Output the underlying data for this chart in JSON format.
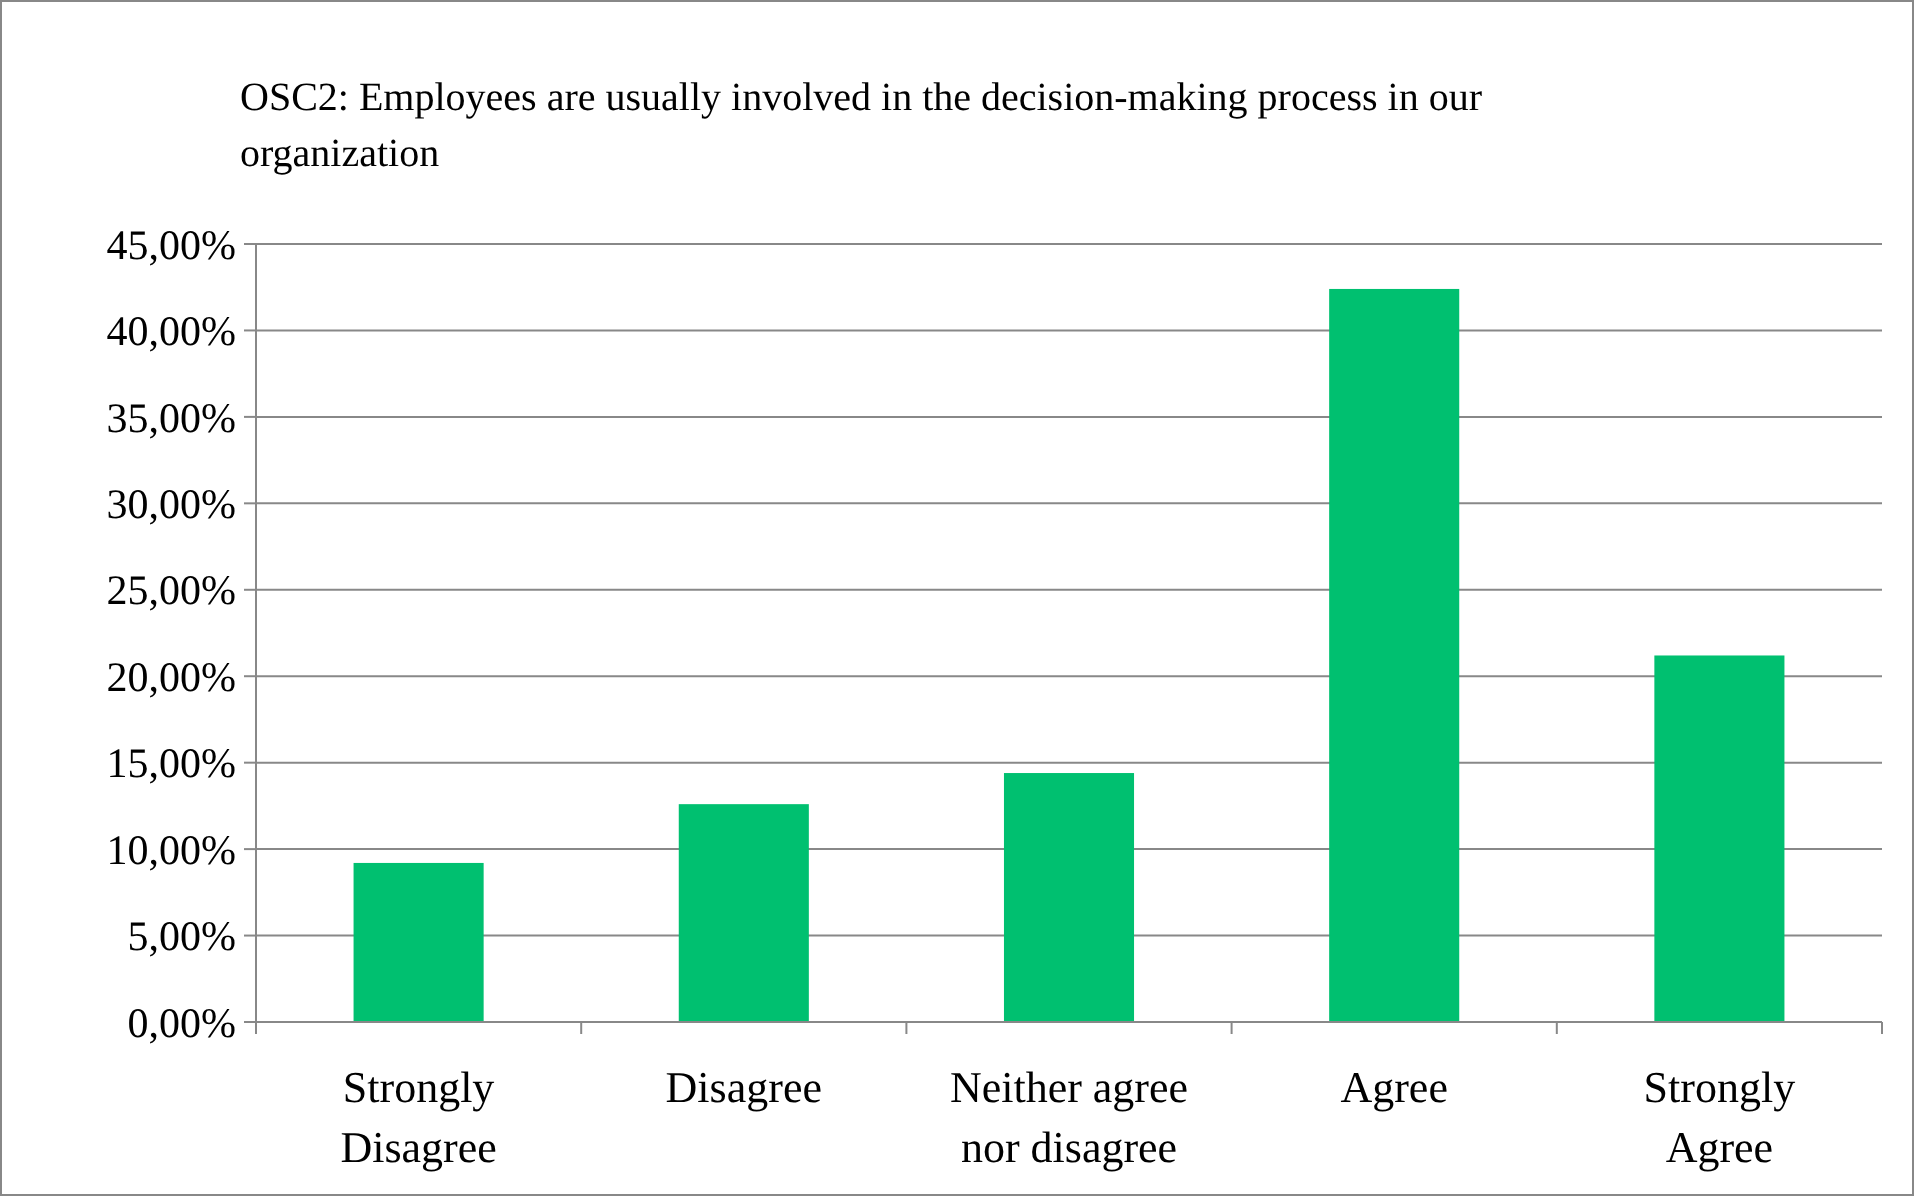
{
  "chart_data": {
    "type": "bar",
    "title": "OSC2: Employees are usually involved in the decision-making process in our organization",
    "categories": [
      "Strongly Disagree",
      "Disagree",
      "Neither agree nor disagree",
      "Agree",
      "Strongly Agree"
    ],
    "values": [
      9.2,
      12.6,
      14.4,
      42.4,
      21.2
    ],
    "color": "#00c070",
    "ylim": [
      0,
      45
    ],
    "yticks": [
      {
        "value": 0,
        "label": "0,00%"
      },
      {
        "value": 5,
        "label": "5,00%"
      },
      {
        "value": 10,
        "label": "10,00%"
      },
      {
        "value": 15,
        "label": "15,00%"
      },
      {
        "value": 20,
        "label": "20,00%"
      },
      {
        "value": 25,
        "label": "25,00%"
      },
      {
        "value": 30,
        "label": "30,00%"
      },
      {
        "value": 35,
        "label": "35,00%"
      },
      {
        "value": 40,
        "label": "40,00%"
      },
      {
        "value": 45,
        "label": "45,00%"
      }
    ],
    "grid": "y"
  }
}
